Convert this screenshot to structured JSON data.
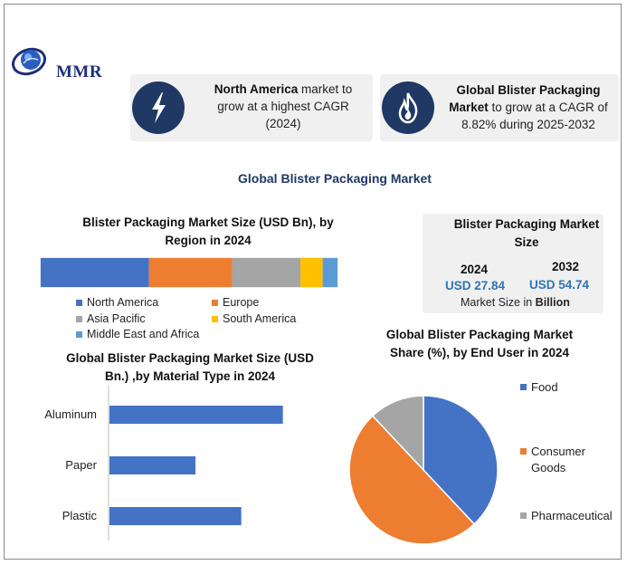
{
  "logo": {
    "text": "MMR"
  },
  "cards": [
    {
      "icon": "lightning-icon",
      "bold": "North America",
      "rest": " market to grow at a highest CAGR (2024)"
    },
    {
      "icon": "flame-icon",
      "bold": "Global Blister Packaging Market",
      "rest": " to grow at a CAGR of 8.82% during 2025-2032"
    }
  ],
  "main_title": "Global Blister Packaging Market",
  "market_size": {
    "title": "Blister Packaging Market Size",
    "year1": "2024",
    "value1": "USD 27.84",
    "year2": "2032",
    "value2": "USD 54.74",
    "note_prefix": "Market Size in ",
    "note_bold": "Billion"
  },
  "colors": {
    "blue": "#4472c4",
    "orange": "#ed7d31",
    "gray": "#a5a5a5",
    "yellow": "#ffc000",
    "lightblue": "#5b9bd5",
    "navy": "#1f3864"
  },
  "chart_data": [
    {
      "type": "bar",
      "orientation": "stacked-horizontal",
      "title": "Blister Packaging Market Size (USD Bn), by Region in 2024",
      "series": [
        {
          "name": "North America",
          "value": 36.5,
          "color": "#4472c4"
        },
        {
          "name": "Europe",
          "value": 28.0,
          "color": "#ed7d31"
        },
        {
          "name": "Asia Pacific",
          "value": 23.0,
          "color": "#a5a5a5"
        },
        {
          "name": "South America",
          "value": 7.5,
          "color": "#ffc000"
        },
        {
          "name": "Middle East and Africa",
          "value": 5.0,
          "color": "#5b9bd5"
        }
      ],
      "legend": "bottom"
    },
    {
      "type": "bar",
      "orientation": "horizontal",
      "title": "Global Blister Packaging Market Size (USD Bn.) ,by Material Type in 2024",
      "categories": [
        "Aluminum",
        "Paper",
        "Plastic"
      ],
      "values": [
        12.5,
        6.2,
        9.5
      ],
      "xlim": [
        0,
        15
      ],
      "color": "#4472c4"
    },
    {
      "type": "pie",
      "title": "Global Blister Packaging Market Share (%), by End User in 2024",
      "labels": [
        "Food",
        "Consumer Goods",
        "Pharmaceutical"
      ],
      "values": [
        38,
        50,
        12
      ],
      "colors": [
        "#4472c4",
        "#ed7d31",
        "#a5a5a5"
      ],
      "legend": "right"
    }
  ]
}
